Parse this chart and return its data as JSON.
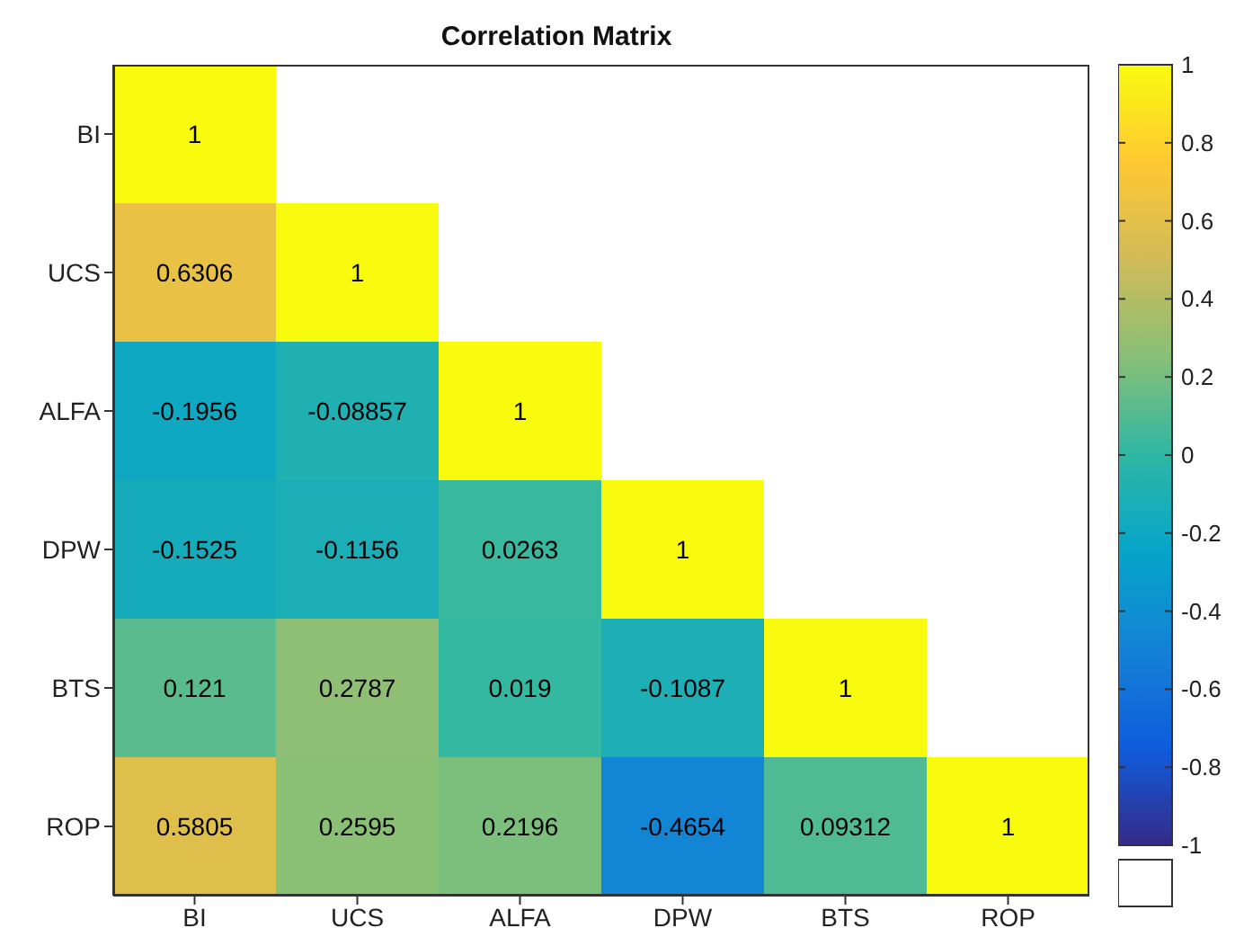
{
  "chart_data": {
    "type": "heatmap",
    "title": "Correlation Matrix",
    "categories": [
      "BI",
      "UCS",
      "ALFA",
      "DPW",
      "BTS",
      "ROP"
    ],
    "y_categories": [
      "BI",
      "UCS",
      "ALFA",
      "DPW",
      "BTS",
      "ROP"
    ],
    "cells": [
      [
        1,
        null,
        null,
        null,
        null,
        null
      ],
      [
        0.6306,
        1,
        null,
        null,
        null,
        null
      ],
      [
        -0.1956,
        -0.08857,
        1,
        null,
        null,
        null
      ],
      [
        -0.1525,
        -0.1156,
        0.0263,
        1,
        null,
        null
      ],
      [
        0.121,
        0.2787,
        0.019,
        -0.1087,
        1,
        null
      ],
      [
        0.5805,
        0.2595,
        0.2196,
        -0.4654,
        0.09312,
        1
      ]
    ],
    "clim": [
      -1,
      1
    ],
    "cticks": [
      -1,
      -0.8,
      -0.6,
      -0.4,
      -0.2,
      0,
      0.2,
      0.4,
      0.6,
      0.8,
      1
    ],
    "data_labels": true
  }
}
